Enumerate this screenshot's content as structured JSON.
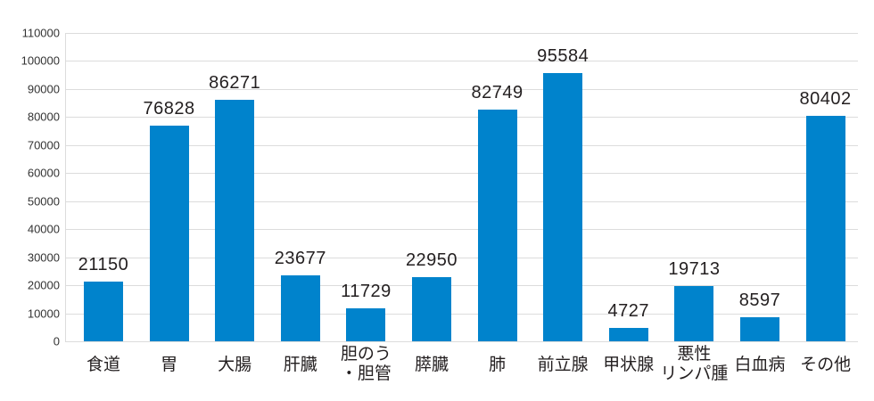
{
  "chart_data": {
    "type": "bar",
    "title": "",
    "xlabel": "",
    "ylabel": "",
    "ylim": [
      0,
      110000
    ],
    "yticks": [
      0,
      10000,
      20000,
      30000,
      40000,
      50000,
      60000,
      70000,
      80000,
      90000,
      100000,
      110000
    ],
    "grid": true,
    "legend": null,
    "bar_color": "#0083cc",
    "data_labels": true,
    "categories": [
      "食道",
      "胃",
      "大腸",
      "肝臓",
      "胆のう\n・胆管",
      "膵臓",
      "肺",
      "前立腺",
      "甲状腺",
      "悪性\nリンパ腫",
      "白血病",
      "その他"
    ],
    "values": [
      21150,
      76828,
      86271,
      23677,
      11729,
      22950,
      82749,
      95584,
      4727,
      19713,
      8597,
      80402
    ]
  }
}
